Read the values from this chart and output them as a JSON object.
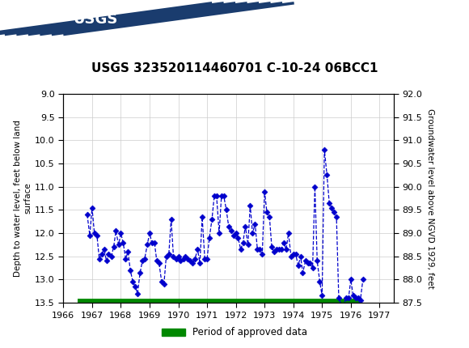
{
  "title": "USGS 323520114460701 C-10-24 06BCC1",
  "ylabel_left": "Depth to water level, feet below land\nsurface",
  "ylabel_right": "Groundwater level above NGVD 1929, feet",
  "header_color": "#1a6b3c",
  "ylim_left": [
    13.5,
    9.0
  ],
  "ylim_right": [
    87.5,
    92.0
  ],
  "xlim": [
    1966.0,
    1977.5
  ],
  "xticks": [
    1966,
    1967,
    1968,
    1969,
    1970,
    1971,
    1972,
    1973,
    1974,
    1975,
    1976,
    1977
  ],
  "yticks_left": [
    9.0,
    9.5,
    10.0,
    10.5,
    11.0,
    11.5,
    12.0,
    12.5,
    13.0,
    13.5
  ],
  "yticks_right": [
    87.5,
    88.0,
    88.5,
    89.0,
    89.5,
    90.0,
    90.5,
    91.0,
    91.5,
    92.0
  ],
  "line_color": "#0000cc",
  "marker_color": "#0000cc",
  "approved_color": "#008800",
  "background_color": "#ffffff",
  "grid_color": "#cccccc",
  "data_x": [
    1966.83,
    1966.92,
    1967.0,
    1967.08,
    1967.17,
    1967.25,
    1967.33,
    1967.42,
    1967.5,
    1967.58,
    1967.67,
    1967.75,
    1967.83,
    1967.92,
    1968.0,
    1968.08,
    1968.17,
    1968.25,
    1968.33,
    1968.42,
    1968.5,
    1968.58,
    1968.67,
    1968.75,
    1968.83,
    1968.92,
    1969.0,
    1969.08,
    1969.17,
    1969.25,
    1969.33,
    1969.42,
    1969.5,
    1969.58,
    1969.67,
    1969.75,
    1969.83,
    1969.92,
    1970.0,
    1970.08,
    1970.17,
    1970.25,
    1970.33,
    1970.42,
    1970.5,
    1970.58,
    1970.67,
    1970.75,
    1970.83,
    1970.92,
    1971.0,
    1971.08,
    1971.17,
    1971.25,
    1971.33,
    1971.42,
    1971.5,
    1971.58,
    1971.67,
    1971.75,
    1971.83,
    1971.92,
    1972.0,
    1972.08,
    1972.17,
    1972.25,
    1972.33,
    1972.42,
    1972.5,
    1972.58,
    1972.67,
    1972.75,
    1972.83,
    1972.92,
    1973.0,
    1973.08,
    1973.17,
    1973.25,
    1973.33,
    1973.42,
    1973.5,
    1973.58,
    1973.67,
    1973.75,
    1973.83,
    1973.92,
    1974.0,
    1974.08,
    1974.17,
    1974.25,
    1974.33,
    1974.42,
    1974.5,
    1974.58,
    1974.67,
    1974.75,
    1974.83,
    1974.92,
    1975.0,
    1975.08,
    1975.17,
    1975.25,
    1975.33,
    1975.42,
    1975.5,
    1975.58,
    1975.67,
    1975.75,
    1975.83,
    1975.92,
    1976.0,
    1976.08,
    1976.17,
    1976.25,
    1976.33,
    1976.42
  ],
  "data_y": [
    11.6,
    12.05,
    11.45,
    12.0,
    12.05,
    12.55,
    12.45,
    12.35,
    12.6,
    12.45,
    12.5,
    12.3,
    11.95,
    12.25,
    12.0,
    12.2,
    12.55,
    12.4,
    12.8,
    13.05,
    13.15,
    13.3,
    12.85,
    12.6,
    12.55,
    12.25,
    12.0,
    12.2,
    12.2,
    12.6,
    12.65,
    13.05,
    13.1,
    12.5,
    12.45,
    11.7,
    12.5,
    12.55,
    12.5,
    12.6,
    12.55,
    12.5,
    12.55,
    12.6,
    12.65,
    12.55,
    12.35,
    12.65,
    11.65,
    12.55,
    12.55,
    12.1,
    11.7,
    11.2,
    11.2,
    12.0,
    11.2,
    11.2,
    11.5,
    11.85,
    11.95,
    12.05,
    12.0,
    12.1,
    12.35,
    12.2,
    11.85,
    12.25,
    11.4,
    12.0,
    11.8,
    12.35,
    12.35,
    12.45,
    11.1,
    11.55,
    11.65,
    12.3,
    12.4,
    12.35,
    12.35,
    12.35,
    12.2,
    12.35,
    12.0,
    12.5,
    12.45,
    12.45,
    12.7,
    12.5,
    12.85,
    12.6,
    12.65,
    12.65,
    12.75,
    11.0,
    12.6,
    13.05,
    13.35,
    10.2,
    10.75,
    11.35,
    11.45,
    11.55,
    11.65,
    13.4,
    13.55,
    13.55,
    13.4,
    13.4,
    13.0,
    13.35,
    13.4,
    13.4,
    13.45,
    13.0
  ],
  "legend_label": "Period of approved data",
  "title_fontsize": 11,
  "tick_fontsize": 8,
  "label_fontsize": 7.5
}
